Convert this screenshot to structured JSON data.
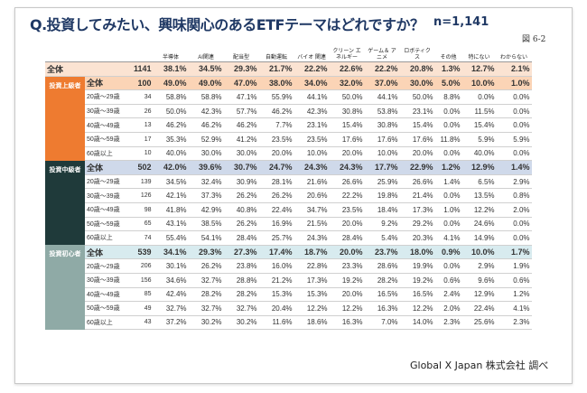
{
  "title": "Q.投資してみたい、興味関心のあるETFテーマはどれですか？",
  "n_label": "n=1,141",
  "figure_label": "図 6-2",
  "footer": "Global X Japan 株式会社 調べ",
  "columns": [
    "",
    "",
    "",
    "半導体",
    "AI関連",
    "配当型",
    "自動運転",
    "バイオ 関連",
    "クリーン エネルギー",
    "ゲーム＆ アニメ",
    "ロボティクス",
    "その他",
    "特にない",
    "わからない"
  ],
  "overall": {
    "label": "全体",
    "n": "1141",
    "values": [
      "38.1%",
      "34.5%",
      "29.3%",
      "21.7%",
      "22.2%",
      "22.6%",
      "22.2%",
      "20.8%",
      "1.3%",
      "12.7%",
      "2.1%"
    ]
  },
  "segments": [
    {
      "name": "投資上級者",
      "total": {
        "label": "全体",
        "n": "100",
        "values": [
          "49.0%",
          "49.0%",
          "47.0%",
          "38.0%",
          "34.0%",
          "32.0%",
          "37.0%",
          "30.0%",
          "5.0%",
          "10.0%",
          "1.0%"
        ]
      },
      "rows": [
        {
          "label": "20歳～29歳",
          "n": "34",
          "values": [
            "58.8%",
            "58.8%",
            "47.1%",
            "55.9%",
            "44.1%",
            "50.0%",
            "44.1%",
            "50.0%",
            "8.8%",
            "0.0%",
            "0.0%"
          ]
        },
        {
          "label": "30歳～39歳",
          "n": "26",
          "values": [
            "50.0%",
            "42.3%",
            "57.7%",
            "46.2%",
            "42.3%",
            "30.8%",
            "53.8%",
            "23.1%",
            "0.0%",
            "11.5%",
            "0.0%"
          ]
        },
        {
          "label": "40歳～49歳",
          "n": "13",
          "values": [
            "46.2%",
            "46.2%",
            "46.2%",
            "7.7%",
            "23.1%",
            "15.4%",
            "30.8%",
            "15.4%",
            "0.0%",
            "15.4%",
            "0.0%"
          ]
        },
        {
          "label": "50歳～59歳",
          "n": "17",
          "values": [
            "35.3%",
            "52.9%",
            "41.2%",
            "23.5%",
            "23.5%",
            "17.6%",
            "17.6%",
            "17.6%",
            "11.8%",
            "5.9%",
            "5.9%"
          ]
        },
        {
          "label": "60歳以上",
          "n": "10",
          "values": [
            "40.0%",
            "30.0%",
            "30.0%",
            "20.0%",
            "10.0%",
            "20.0%",
            "10.0%",
            "20.0%",
            "0.0%",
            "40.0%",
            "0.0%"
          ]
        }
      ]
    },
    {
      "name": "投資中級者",
      "total": {
        "label": "全体",
        "n": "502",
        "values": [
          "42.0%",
          "39.6%",
          "30.7%",
          "24.7%",
          "24.3%",
          "24.3%",
          "17.7%",
          "22.9%",
          "1.2%",
          "12.9%",
          "1.4%"
        ]
      },
      "rows": [
        {
          "label": "20歳～29歳",
          "n": "139",
          "values": [
            "34.5%",
            "32.4%",
            "30.9%",
            "28.1%",
            "21.6%",
            "26.6%",
            "25.9%",
            "26.6%",
            "1.4%",
            "6.5%",
            "2.9%"
          ]
        },
        {
          "label": "30歳～39歳",
          "n": "126",
          "values": [
            "42.1%",
            "37.3%",
            "26.2%",
            "26.2%",
            "20.6%",
            "22.2%",
            "19.8%",
            "21.4%",
            "0.0%",
            "13.5%",
            "0.8%"
          ]
        },
        {
          "label": "40歳～49歳",
          "n": "98",
          "values": [
            "41.8%",
            "42.9%",
            "40.8%",
            "22.4%",
            "34.7%",
            "23.5%",
            "18.4%",
            "17.3%",
            "1.0%",
            "12.2%",
            "2.0%"
          ]
        },
        {
          "label": "50歳～59歳",
          "n": "65",
          "values": [
            "43.1%",
            "38.5%",
            "26.2%",
            "16.9%",
            "21.5%",
            "20.0%",
            "9.2%",
            "29.2%",
            "0.0%",
            "24.6%",
            "0.0%"
          ]
        },
        {
          "label": "60歳以上",
          "n": "74",
          "values": [
            "55.4%",
            "54.1%",
            "28.4%",
            "25.7%",
            "24.3%",
            "28.4%",
            "5.4%",
            "20.3%",
            "4.1%",
            "14.9%",
            "0.0%"
          ]
        }
      ]
    },
    {
      "name": "投資初心者",
      "total": {
        "label": "全体",
        "n": "539",
        "values": [
          "34.1%",
          "29.3%",
          "27.3%",
          "17.4%",
          "18.7%",
          "20.0%",
          "23.7%",
          "18.0%",
          "0.9%",
          "10.0%",
          "1.7%"
        ]
      },
      "rows": [
        {
          "label": "20歳～29歳",
          "n": "206",
          "values": [
            "30.1%",
            "26.2%",
            "23.8%",
            "16.0%",
            "22.8%",
            "23.3%",
            "28.6%",
            "19.9%",
            "0.0%",
            "2.9%",
            "1.9%"
          ]
        },
        {
          "label": "30歳～39歳",
          "n": "156",
          "values": [
            "34.6%",
            "32.7%",
            "28.8%",
            "21.2%",
            "17.3%",
            "19.2%",
            "28.2%",
            "19.2%",
            "0.6%",
            "9.6%",
            "0.6%"
          ]
        },
        {
          "label": "40歳～49歳",
          "n": "85",
          "values": [
            "42.4%",
            "28.2%",
            "28.2%",
            "15.3%",
            "15.3%",
            "20.0%",
            "16.5%",
            "16.5%",
            "2.4%",
            "12.9%",
            "1.2%"
          ]
        },
        {
          "label": "50歳～59歳",
          "n": "49",
          "values": [
            "32.7%",
            "32.7%",
            "32.7%",
            "20.4%",
            "12.2%",
            "12.2%",
            "16.3%",
            "12.2%",
            "2.0%",
            "22.4%",
            "4.1%"
          ]
        },
        {
          "label": "60歳以上",
          "n": "43",
          "values": [
            "37.2%",
            "30.2%",
            "30.2%",
            "11.6%",
            "18.6%",
            "16.3%",
            "7.0%",
            "14.0%",
            "2.3%",
            "25.6%",
            "2.3%"
          ]
        }
      ]
    }
  ]
}
